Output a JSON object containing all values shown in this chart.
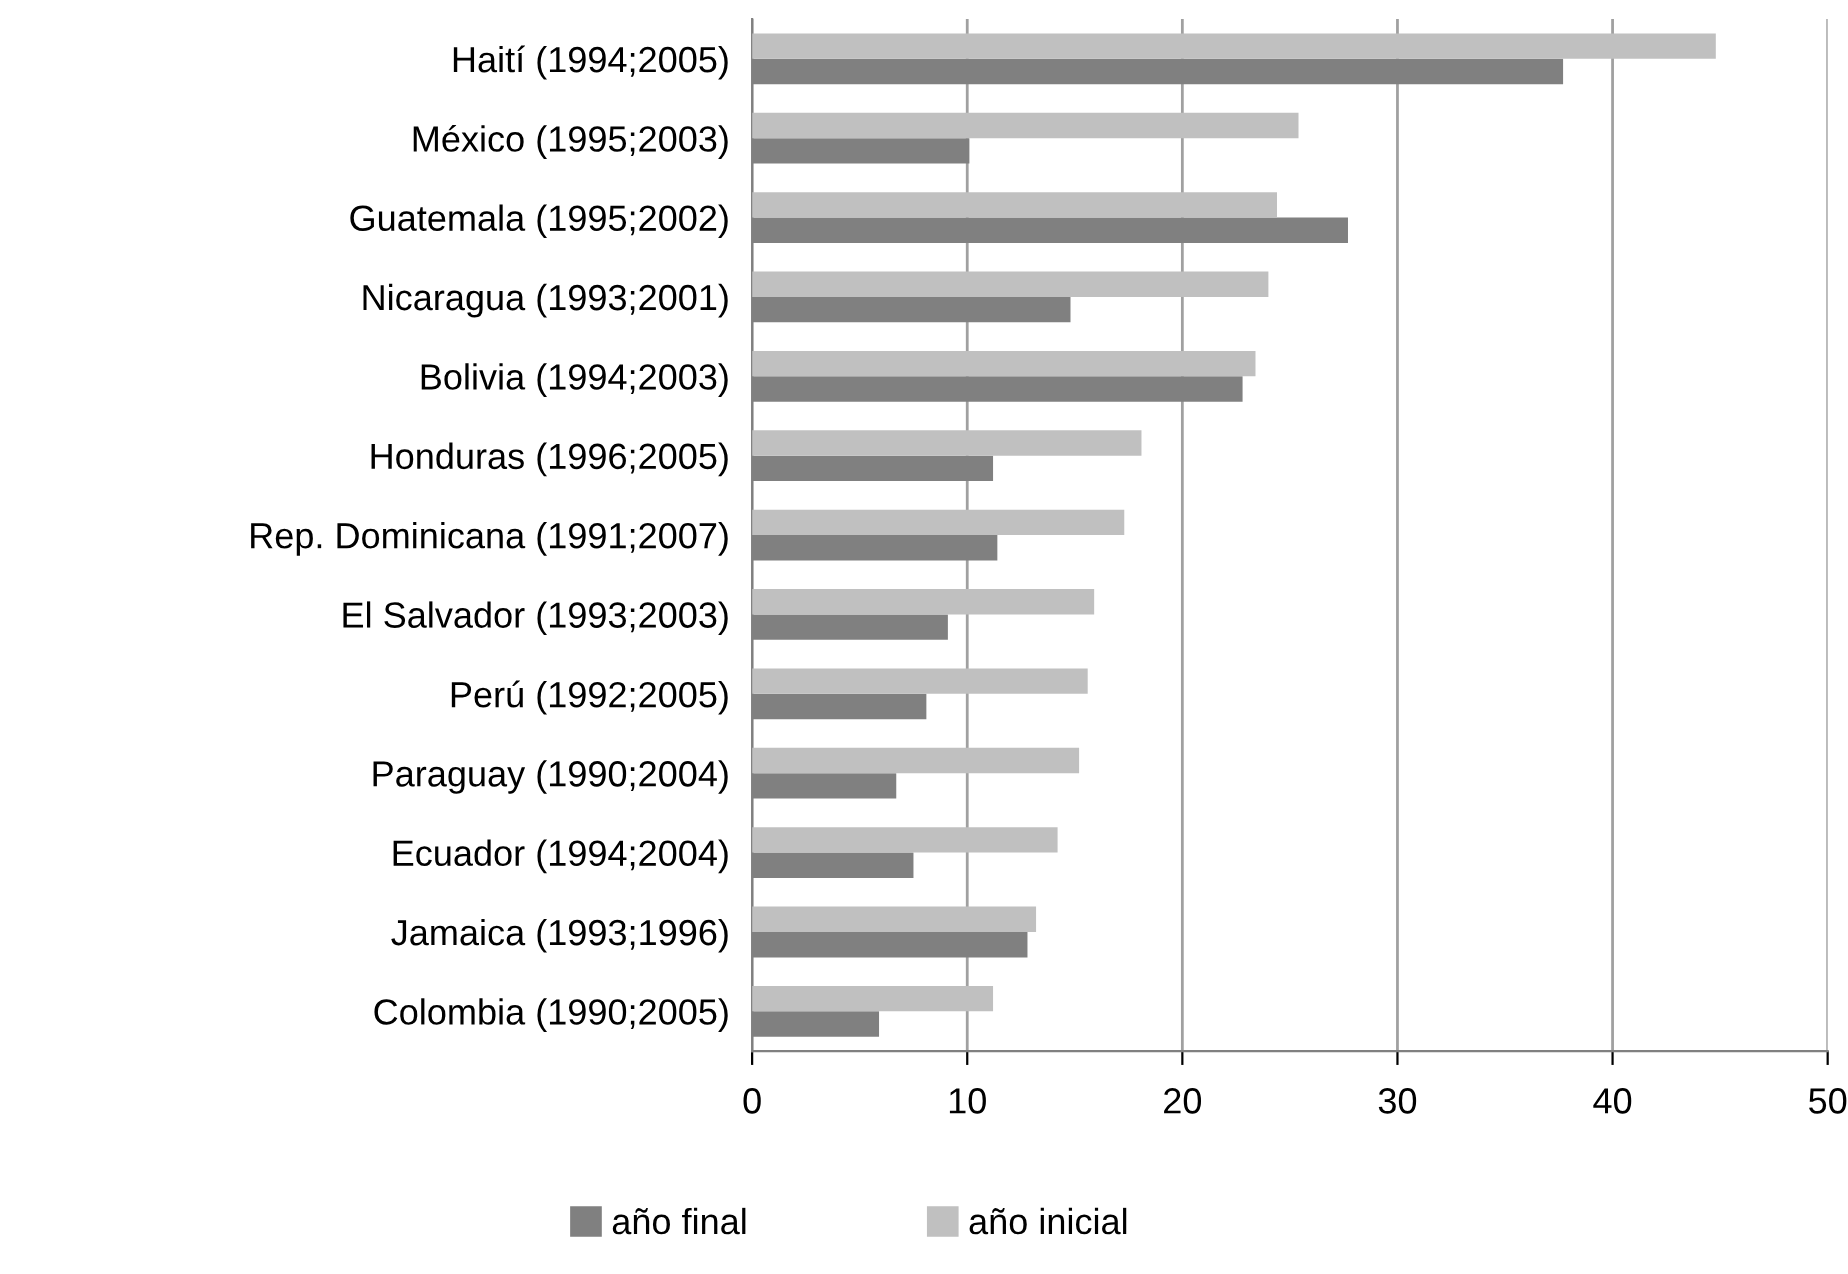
{
  "chart_data": {
    "type": "bar",
    "orientation": "horizontal",
    "categories": [
      "Haití (1994;2005)",
      "México (1995;2003)",
      "Guatemala (1995;2002)",
      "Nicaragua (1993;2001)",
      "Bolivia (1994;2003)",
      "Honduras (1996;2005)",
      "Rep. Dominicana (1991;2007)",
      "El Salvador (1993;2003)",
      "Perú (1992;2005)",
      "Paraguay (1990;2004)",
      "Ecuador (1994;2004)",
      "Jamaica (1993;1996)",
      "Colombia (1990;2005)"
    ],
    "series": [
      {
        "name": "año final",
        "color": "#808080",
        "values": [
          37.7,
          10.1,
          27.7,
          14.8,
          22.8,
          11.2,
          11.4,
          9.1,
          8.1,
          6.7,
          7.5,
          12.8,
          5.9
        ]
      },
      {
        "name": "año inicial",
        "color": "#c0c0c0",
        "values": [
          44.8,
          25.4,
          24.4,
          24.0,
          23.4,
          18.1,
          17.3,
          15.9,
          15.6,
          15.2,
          14.2,
          13.2,
          11.2
        ]
      }
    ],
    "xlim": [
      0,
      50
    ],
    "xticks": [
      0,
      10,
      20,
      30,
      40,
      50
    ],
    "grid": "x",
    "legend": "bottom"
  }
}
